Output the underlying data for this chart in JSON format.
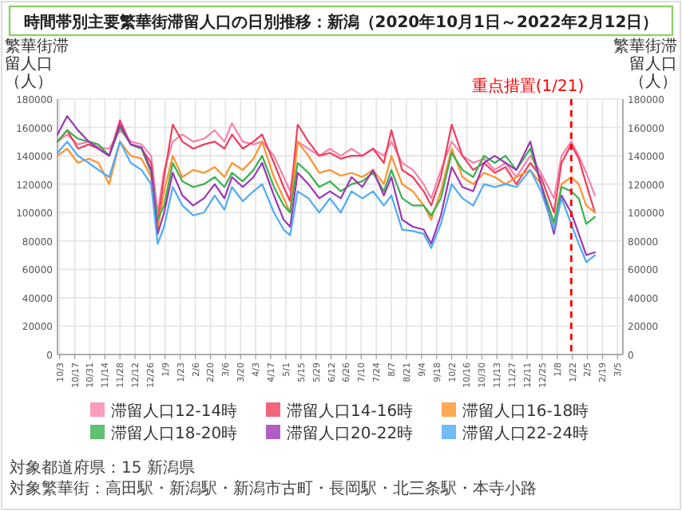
{
  "chart_data": {
    "type": "line",
    "title": "時間帯別主要繁華街滞留人口の日別推移：新潟（2020年10月1日～2022年2月12日）",
    "ylabel": "繁華街滞留人口（人）",
    "y2label": "繁華街滞留人口（人）",
    "x": [
      "2020-10-01",
      "2020-10-10",
      "2020-10-20",
      "2020-10-30",
      "2020-11-08",
      "2020-11-18",
      "2020-11-28",
      "2020-12-08",
      "2020-12-18",
      "2020-12-27",
      "2021-01-02",
      "2021-01-08",
      "2021-01-16",
      "2021-01-25",
      "2021-02-04",
      "2021-02-14",
      "2021-02-24",
      "2021-03-05",
      "2021-03-12",
      "2021-03-22",
      "2021-04-01",
      "2021-04-09",
      "2021-04-20",
      "2021-04-29",
      "2021-05-05",
      "2021-05-12",
      "2021-05-22",
      "2021-06-01",
      "2021-06-11",
      "2021-06-21",
      "2021-07-01",
      "2021-07-11",
      "2021-07-21",
      "2021-07-31",
      "2021-08-07",
      "2021-08-17",
      "2021-08-27",
      "2021-09-06",
      "2021-09-13",
      "2021-09-22",
      "2021-10-02",
      "2021-10-12",
      "2021-10-22",
      "2021-11-01",
      "2021-11-11",
      "2021-11-21",
      "2021-12-01",
      "2021-12-14",
      "2021-12-24",
      "2022-01-05",
      "2022-01-12",
      "2022-01-21",
      "2022-01-28",
      "2022-02-04",
      "2022-02-12"
    ],
    "series": [
      {
        "name": "滞留人口12-14時",
        "color": "#f783ac",
        "values": [
          150000,
          155000,
          148000,
          150000,
          146000,
          145000,
          158000,
          150000,
          148000,
          140000,
          100000,
          130000,
          150000,
          155000,
          150000,
          152000,
          158000,
          150000,
          163000,
          150000,
          148000,
          150000,
          140000,
          125000,
          115000,
          150000,
          145000,
          140000,
          145000,
          140000,
          145000,
          140000,
          145000,
          140000,
          150000,
          135000,
          130000,
          120000,
          110000,
          130000,
          150000,
          140000,
          135000,
          138000,
          130000,
          135000,
          125000,
          140000,
          128000,
          110000,
          140000,
          150000,
          140000,
          128000,
          112000
        ]
      },
      {
        "name": "滞留人口14-16時",
        "color": "#f03e5e",
        "values": [
          150000,
          158000,
          145000,
          148000,
          145000,
          140000,
          165000,
          148000,
          145000,
          135000,
          92000,
          125000,
          162000,
          150000,
          145000,
          148000,
          150000,
          145000,
          155000,
          145000,
          150000,
          155000,
          135000,
          118000,
          108000,
          162000,
          150000,
          140000,
          142000,
          138000,
          140000,
          140000,
          145000,
          135000,
          158000,
          130000,
          125000,
          115000,
          105000,
          125000,
          162000,
          140000,
          130000,
          135000,
          128000,
          132000,
          120000,
          135000,
          125000,
          100000,
          135000,
          148000,
          138000,
          120000,
          100000
        ]
      },
      {
        "name": "滞留人口16-18時",
        "color": "#ff922b",
        "values": [
          140000,
          145000,
          135000,
          138000,
          135000,
          120000,
          150000,
          140000,
          138000,
          125000,
          88000,
          115000,
          140000,
          125000,
          130000,
          128000,
          132000,
          125000,
          135000,
          130000,
          138000,
          150000,
          125000,
          110000,
          100000,
          150000,
          140000,
          128000,
          130000,
          126000,
          128000,
          125000,
          130000,
          120000,
          140000,
          120000,
          115000,
          105000,
          95000,
          115000,
          145000,
          125000,
          120000,
          128000,
          125000,
          120000,
          125000,
          130000,
          120000,
          89000,
          120000,
          125000,
          120000,
          105000,
          100000
        ]
      },
      {
        "name": "滞留人口18-20時",
        "color": "#37b24d",
        "values": [
          150000,
          158000,
          152000,
          150000,
          148000,
          140000,
          160000,
          148000,
          145000,
          128000,
          95000,
          105000,
          135000,
          122000,
          118000,
          120000,
          125000,
          118000,
          128000,
          122000,
          130000,
          140000,
          118000,
          105000,
          100000,
          135000,
          128000,
          118000,
          122000,
          115000,
          120000,
          122000,
          128000,
          115000,
          130000,
          110000,
          105000,
          105000,
          98000,
          110000,
          142000,
          130000,
          125000,
          140000,
          135000,
          140000,
          130000,
          145000,
          120000,
          93000,
          118000,
          115000,
          110000,
          92000,
          97000
        ]
      },
      {
        "name": "滞留人口20-22時",
        "color": "#9c36b5",
        "values": [
          155000,
          168000,
          158000,
          150000,
          145000,
          140000,
          162000,
          148000,
          146000,
          130000,
          85000,
          100000,
          128000,
          112000,
          105000,
          110000,
          120000,
          110000,
          125000,
          118000,
          125000,
          135000,
          112000,
          95000,
          90000,
          128000,
          120000,
          110000,
          115000,
          110000,
          125000,
          118000,
          130000,
          112000,
          125000,
          95000,
          90000,
          88000,
          78000,
          98000,
          132000,
          118000,
          115000,
          135000,
          140000,
          135000,
          130000,
          150000,
          120000,
          85000,
          112000,
          100000,
          85000,
          70000,
          72000
        ]
      },
      {
        "name": "滞留人口22-24時",
        "color": "#4dabf7",
        "values": [
          142000,
          150000,
          140000,
          135000,
          130000,
          125000,
          150000,
          135000,
          130000,
          120000,
          78000,
          90000,
          118000,
          105000,
          98000,
          100000,
          112000,
          102000,
          118000,
          108000,
          115000,
          120000,
          100000,
          88000,
          84000,
          115000,
          110000,
          100000,
          110000,
          100000,
          115000,
          110000,
          115000,
          105000,
          112000,
          88000,
          87000,
          85000,
          75000,
          92000,
          120000,
          110000,
          105000,
          120000,
          118000,
          120000,
          118000,
          130000,
          115000,
          88000,
          110000,
          92000,
          78000,
          65000,
          70000
        ]
      }
    ],
    "xlim": [
      "2020-10-01",
      "2022-03-10"
    ],
    "xticks": [
      {
        "value": "2020-10-03",
        "label": "10/3"
      },
      {
        "value": "2020-10-17",
        "label": "10/17"
      },
      {
        "value": "2020-10-31",
        "label": "10/31"
      },
      {
        "value": "2020-11-14",
        "label": "11/14"
      },
      {
        "value": "2020-11-28",
        "label": "11/28"
      },
      {
        "value": "2020-12-12",
        "label": "12/12"
      },
      {
        "value": "2020-12-26",
        "label": "12/26"
      },
      {
        "value": "2021-01-09",
        "label": "1/9"
      },
      {
        "value": "2021-01-23",
        "label": "1/23"
      },
      {
        "value": "2021-02-06",
        "label": "2/6"
      },
      {
        "value": "2021-02-20",
        "label": "2/20"
      },
      {
        "value": "2021-03-06",
        "label": "3/6"
      },
      {
        "value": "2021-03-20",
        "label": "3/20"
      },
      {
        "value": "2021-04-03",
        "label": "4/3"
      },
      {
        "value": "2021-04-17",
        "label": "4/17"
      },
      {
        "value": "2021-05-01",
        "label": "5/1"
      },
      {
        "value": "2021-05-15",
        "label": "5/15"
      },
      {
        "value": "2021-05-29",
        "label": "5/29"
      },
      {
        "value": "2021-06-12",
        "label": "6/12"
      },
      {
        "value": "2021-06-26",
        "label": "6/26"
      },
      {
        "value": "2021-07-10",
        "label": "7/10"
      },
      {
        "value": "2021-07-24",
        "label": "7/24"
      },
      {
        "value": "2021-08-07",
        "label": "8/7"
      },
      {
        "value": "2021-08-21",
        "label": "8/21"
      },
      {
        "value": "2021-09-04",
        "label": "9/4"
      },
      {
        "value": "2021-09-18",
        "label": "9/18"
      },
      {
        "value": "2021-10-02",
        "label": "10/2"
      },
      {
        "value": "2021-10-16",
        "label": "10/16"
      },
      {
        "value": "2021-10-30",
        "label": "10/30"
      },
      {
        "value": "2021-11-13",
        "label": "11/13"
      },
      {
        "value": "2021-11-27",
        "label": "11/27"
      },
      {
        "value": "2021-12-11",
        "label": "12/11"
      },
      {
        "value": "2021-12-25",
        "label": "12/25"
      },
      {
        "value": "2022-01-08",
        "label": "1/8"
      },
      {
        "value": "2022-01-22",
        "label": "1/22"
      },
      {
        "value": "2022-02-05",
        "label": "2/5"
      },
      {
        "value": "2022-02-19",
        "label": "2/19"
      },
      {
        "value": "2022-03-05",
        "label": "3/5"
      }
    ],
    "ylim": [
      0,
      180000
    ],
    "yticks": [
      0,
      20000,
      40000,
      60000,
      80000,
      100000,
      120000,
      140000,
      160000,
      180000
    ],
    "y2lim": [
      0,
      180000
    ],
    "y2ticks": [
      0,
      20000,
      40000,
      60000,
      80000,
      100000,
      120000,
      140000,
      160000,
      180000
    ],
    "ref_lines": [
      {
        "axis": "x",
        "value": "2022-01-21",
        "label": "重点措置(1/21)",
        "color": "#ff0000",
        "line_style": "dashed"
      }
    ],
    "grid": true,
    "legend": "bottom",
    "annotations": [
      "対象都道府県：15 新潟県",
      "対象繁華街：高田駅・新潟駅・新潟市古町・長岡駅・北三条駅・本寺小路"
    ]
  }
}
